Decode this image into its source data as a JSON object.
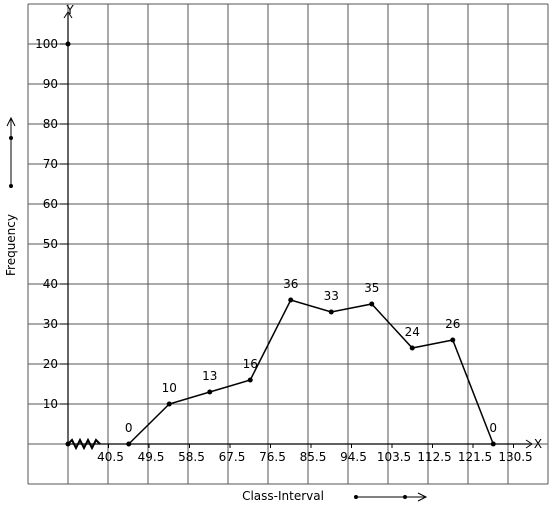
{
  "chart_data": {
    "type": "line",
    "x_label": "Class-Interval",
    "y_label": "Frequency",
    "x_axis_name": "X",
    "y_axis_name": "Y",
    "x": [
      45,
      54,
      63,
      72,
      81,
      90,
      99,
      108,
      117,
      126
    ],
    "values": [
      0,
      10,
      13,
      16,
      36,
      33,
      35,
      24,
      26,
      0
    ],
    "color": "#000000",
    "xlim": [
      31.5,
      135.5
    ],
    "xticks": [
      40.5,
      49.5,
      58.5,
      67.5,
      76.5,
      85.5,
      94.5,
      103.5,
      112.5,
      121.5,
      130.5
    ],
    "ylim": [
      0,
      110
    ],
    "yticks": [
      10,
      20,
      30,
      40,
      50,
      60,
      70,
      80,
      90,
      100
    ]
  }
}
